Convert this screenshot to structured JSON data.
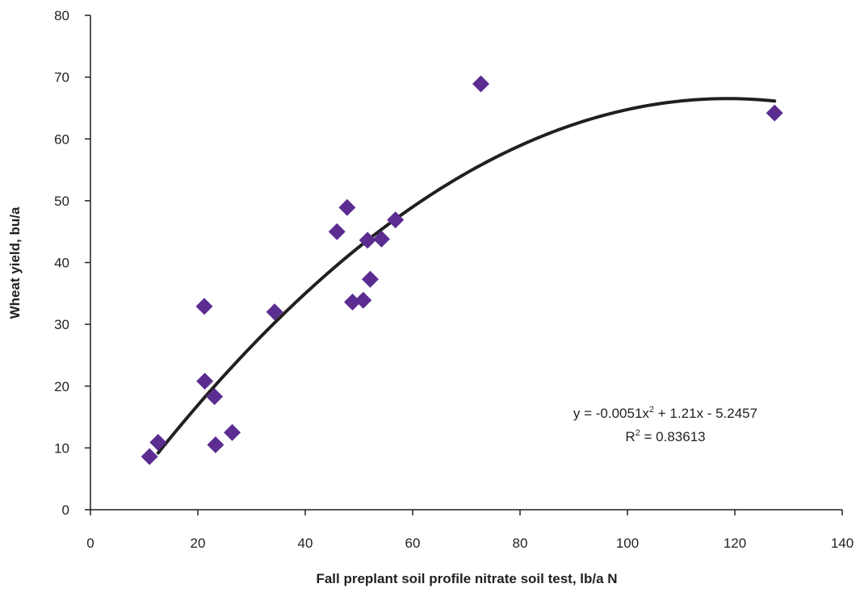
{
  "chart_data": {
    "type": "scatter",
    "title": "",
    "xlabel": "Fall preplant soil profile nitrate soil test, lb/a N",
    "ylabel": "Wheat yield, bu/a",
    "xlim": [
      0,
      140
    ],
    "ylim": [
      0,
      80
    ],
    "xticks": [
      0,
      20,
      40,
      60,
      80,
      100,
      120,
      140
    ],
    "yticks": [
      0,
      10,
      20,
      30,
      40,
      50,
      60,
      70,
      80
    ],
    "grid": false,
    "legend": "none",
    "marker": "diamond",
    "colors": {
      "points": "#5b2d91",
      "trendline": "#231f20",
      "axis": "#231f20"
    },
    "points": [
      {
        "x": 11,
        "y": 8.6
      },
      {
        "x": 12.6,
        "y": 10.9
      },
      {
        "x": 21.2,
        "y": 32.9
      },
      {
        "x": 21.3,
        "y": 20.8
      },
      {
        "x": 23.1,
        "y": 18.3
      },
      {
        "x": 23.3,
        "y": 10.5
      },
      {
        "x": 26.4,
        "y": 12.5
      },
      {
        "x": 34.3,
        "y": 32
      },
      {
        "x": 45.9,
        "y": 45
      },
      {
        "x": 47.8,
        "y": 48.9
      },
      {
        "x": 48.8,
        "y": 33.6
      },
      {
        "x": 50.8,
        "y": 33.9
      },
      {
        "x": 51.6,
        "y": 43.6
      },
      {
        "x": 52.1,
        "y": 37.3
      },
      {
        "x": 54.2,
        "y": 43.8
      },
      {
        "x": 56.8,
        "y": 46.9
      },
      {
        "x": 72.7,
        "y": 68.9
      },
      {
        "x": 127.4,
        "y": 64.2
      }
    ],
    "trendline": {
      "type": "polynomial",
      "coefficients": [
        -0.0051,
        1.21,
        -5.2457
      ],
      "x_range": [
        12.6,
        127.4
      ],
      "equation_label": {
        "prefix": "y = -0.0051x",
        "exponent": "2",
        "suffix": " + 1.21x - 5.2457"
      },
      "r2_label": {
        "prefix": "R",
        "exponent": "2",
        "suffix": " = 0.83613"
      }
    }
  }
}
